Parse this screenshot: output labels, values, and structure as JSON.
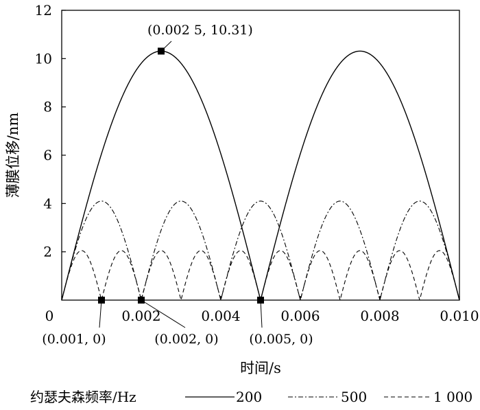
{
  "chart_data": {
    "type": "line",
    "xlabel": "时间/s",
    "ylabel": "薄膜位移/nm",
    "xlim": [
      0,
      0.01
    ],
    "ylim": [
      0,
      12
    ],
    "x_ticks": [
      0,
      0.002,
      0.004,
      0.006,
      0.008,
      0.01
    ],
    "x_tick_labels": [
      "0",
      "0.002",
      "0.004",
      "0.006",
      "0.008",
      "0.010"
    ],
    "y_ticks": [
      2,
      4,
      6,
      8,
      10,
      12
    ],
    "y_tick_labels": [
      "2",
      "4",
      "6",
      "8",
      "10",
      "12"
    ],
    "grid": false,
    "legend_title": "约瑟夫森频率/Hz",
    "legend_position": "bottom",
    "series": [
      {
        "name": "200",
        "frequency": 200,
        "amplitude": 10.31,
        "line_style": "solid"
      },
      {
        "name": "500",
        "frequency": 500,
        "amplitude": 4.1,
        "line_style": "dash-dot"
      },
      {
        "name": "1 000",
        "frequency": 1000,
        "amplitude": 2.05,
        "line_style": "dashed"
      }
    ],
    "annotations": [
      {
        "text": "(0.002 5, 10.31)",
        "x": 0.0025,
        "y": 10.31
      },
      {
        "text": "(0.001, 0)",
        "x": 0.001,
        "y": 0
      },
      {
        "text": "(0.002, 0)",
        "x": 0.002,
        "y": 0
      },
      {
        "text": "(0.005, 0)",
        "x": 0.005,
        "y": 0
      }
    ]
  }
}
